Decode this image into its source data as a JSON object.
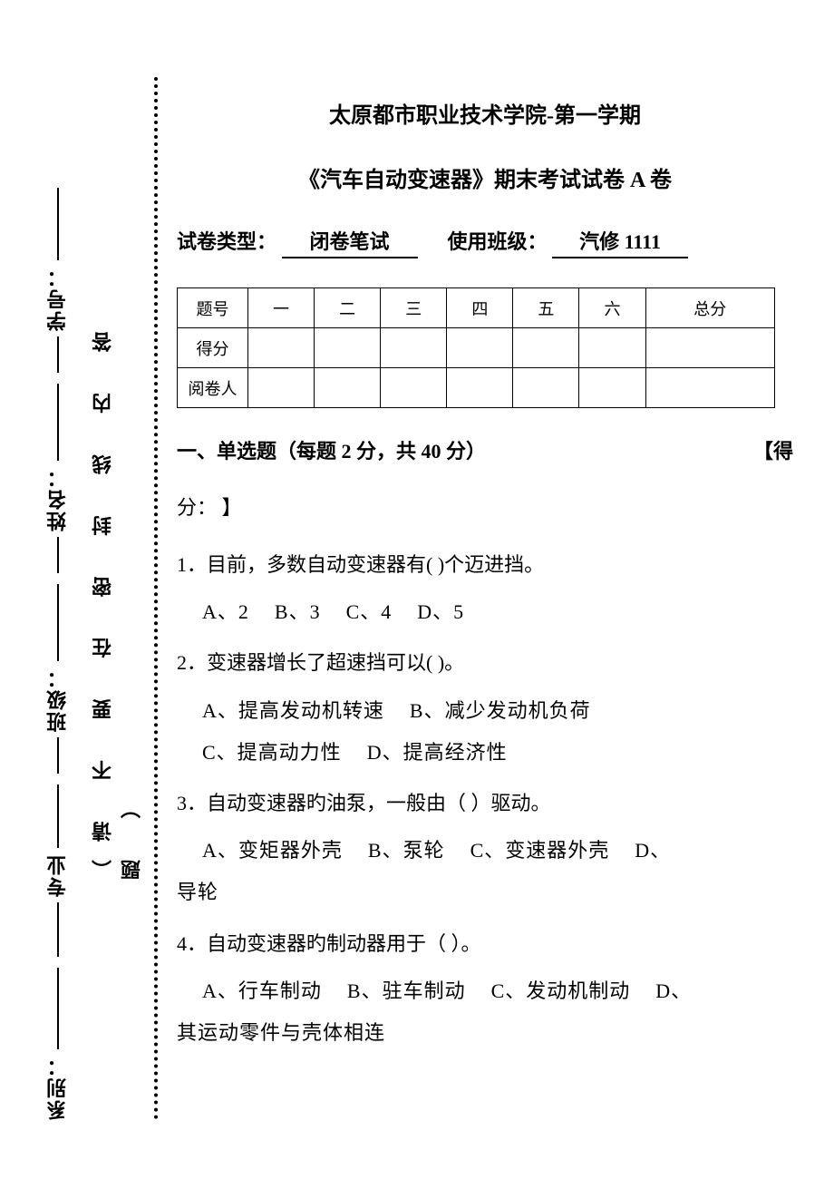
{
  "header": {
    "school_line": "太原都市职业技术学院-第一学期",
    "course_line": "《汽车自动变速器》期末考试试卷 A 卷",
    "exam_type_label": "试卷类型：",
    "exam_type_value": "闭卷笔试",
    "class_label": "使用班级：",
    "class_value": "汽修 1111"
  },
  "score_table": {
    "row_labels": [
      "题号",
      "得分",
      "阅卷人"
    ],
    "columns": [
      "一",
      "二",
      "三",
      "四",
      "五",
      "六",
      "总分"
    ]
  },
  "section1": {
    "title": "一、单选题（每题 2 分，共 40 分）",
    "score_prefix": "【得",
    "score_suffix": "分：   】"
  },
  "questions": [
    {
      "stem": "1．目前，多数自动变速器有(    )个迈进挡。",
      "opts": [
        "A、2",
        "B、3",
        "C、4",
        "D、5"
      ]
    },
    {
      "stem": "2．变速器增长了超速挡可以(    )。",
      "opts": [
        "A、提高发动机转速",
        "B、减少发动机负荷",
        "C、提高动力性",
        "D、提高经济性"
      ],
      "twoRow": true
    },
    {
      "stem": "3．自动变速器旳油泵，一般由（   ）驱动。",
      "opts": [
        "A、变矩器外壳",
        "B、泵轮",
        "C、变速器外壳",
        "D、导轮"
      ],
      "wrapLast": true
    },
    {
      "stem": "4．自动变速器旳制动器用于（   ）。",
      "opts": [
        "A、行车制动",
        "B、驻车制动",
        "C、发动机制动",
        "D、其运动零件与壳体相连"
      ],
      "wrapLast": true
    }
  ],
  "sidebar": {
    "outer_segments": [
      "系别：",
      "专业",
      "班级：",
      "姓名：",
      "学号："
    ],
    "inner_text": "（请 不 要 在 密 封 线 内 答 题 ）"
  },
  "colors": {
    "text": "#000000",
    "bg": "#ffffff"
  }
}
